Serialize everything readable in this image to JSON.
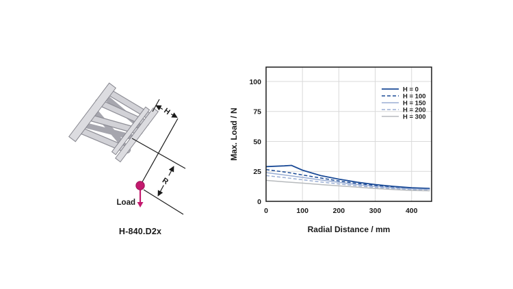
{
  "figure": {
    "caption": "H-840.D2x",
    "labels": {
      "h": "H",
      "r": "R",
      "load": "Load"
    },
    "colors": {
      "magenta": "#c31a6e",
      "drawing_line": "#1a1a1a",
      "plate_fill": "#dcdce0",
      "strut_light": "#d2d2d7",
      "strut_dark": "#a6a6ae"
    }
  },
  "chart_data": {
    "type": "line",
    "title": "",
    "xlabel": "Radial Distance / mm",
    "ylabel": "Max. Load / N",
    "xlim": [
      0,
      455
    ],
    "ylim": [
      0,
      112
    ],
    "x_ticks": [
      0,
      100,
      200,
      300,
      400
    ],
    "y_ticks": [
      0,
      25,
      50,
      75,
      100
    ],
    "grid": true,
    "legend_position": "top-right",
    "grid_color": "#d9d9d9",
    "frame_color": "#1a1a1a",
    "x": [
      0,
      50,
      70,
      100,
      150,
      200,
      250,
      300,
      350,
      400,
      450
    ],
    "series": [
      {
        "name": "H = 0",
        "style": "solid",
        "color": "#1a4a96",
        "width": 1.8,
        "values": [
          29,
          29.6,
          30,
          26,
          21.5,
          18.5,
          16,
          14,
          12.5,
          11.3,
          10.8
        ]
      },
      {
        "name": "H = 100",
        "style": "dashed",
        "color": "#1a4a96",
        "width": 1.5,
        "values": [
          26.5,
          24.5,
          23.6,
          22,
          19.5,
          17,
          15,
          13.2,
          12,
          11,
          10.5
        ]
      },
      {
        "name": "H = 150",
        "style": "solid",
        "color": "#9aaed4",
        "width": 1.5,
        "values": [
          24,
          22,
          21.2,
          20,
          17.8,
          15.8,
          14,
          12.5,
          11.3,
          10.4,
          10
        ]
      },
      {
        "name": "H = 200",
        "style": "dashed",
        "color": "#9aaed4",
        "width": 1.5,
        "values": [
          21.5,
          19.8,
          19.1,
          18,
          16.2,
          14.5,
          13,
          11.7,
          10.7,
          9.9,
          9.5
        ]
      },
      {
        "name": "H = 300",
        "style": "solid",
        "color": "#b7babd",
        "width": 1.5,
        "values": [
          17.5,
          16.3,
          15.9,
          15.2,
          14,
          12.9,
          11.8,
          10.7,
          9.8,
          9.1,
          8.8
        ]
      }
    ]
  }
}
